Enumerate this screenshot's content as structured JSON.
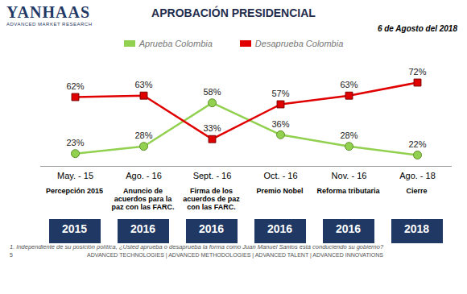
{
  "chart_data": {
    "type": "line",
    "title": "APROBACIÓN PRESIDENCIAL",
    "subtitle": "6 de Agosto del 2018",
    "categories": [
      "May. - 15",
      "Ago. - 16",
      "Sept. - 16",
      "Oct. - 16",
      "Nov. - 16",
      "Ago. - 18"
    ],
    "series": [
      {
        "name": "Aprueba Colombia",
        "color": "#92d050",
        "marker": "circle",
        "line_style": "solid",
        "values": [
          23,
          28,
          58,
          36,
          28,
          22
        ],
        "value_labels": [
          "23%",
          "28%",
          "58%",
          "36%",
          "28%",
          "22%"
        ]
      },
      {
        "name": "Desaprueba Colombia",
        "color": "#e00000",
        "marker": "square",
        "line_style": "solid",
        "values": [
          62,
          63,
          33,
          57,
          63,
          72
        ],
        "value_labels": [
          "62%",
          "63%",
          "33%",
          "57%",
          "63%",
          "72%"
        ]
      }
    ],
    "data_labels": true,
    "tick_labels": "x",
    "legend": "top",
    "annotations": {
      "events": [
        "Percepción 2015",
        "Anuncio de acuerdos para la paz con las FARC.",
        "Firma de los acuerdos de paz con las FARC.",
        "Premio Nobel",
        "Reforma tributaria",
        "Cierre"
      ],
      "years": [
        "2015",
        "2016",
        "2016",
        "2016",
        "2016",
        "2018"
      ]
    },
    "footnote": "1. Independiente de su posición política, ¿Usted aprueba o desaprueba la forma como Juan Manuel Santos está conduciendo su gobierno?"
  },
  "page": {
    "logo": "YANHAAS",
    "logo_tagline": "ADVANCED MARKET RESEARCH",
    "page_number": "5",
    "footer": "ADVANCED TECHNOLOGIES | ADVANCED METHODOLOGIES | ADVANCED TALENT | ADVANCED INNOVATIONS"
  }
}
